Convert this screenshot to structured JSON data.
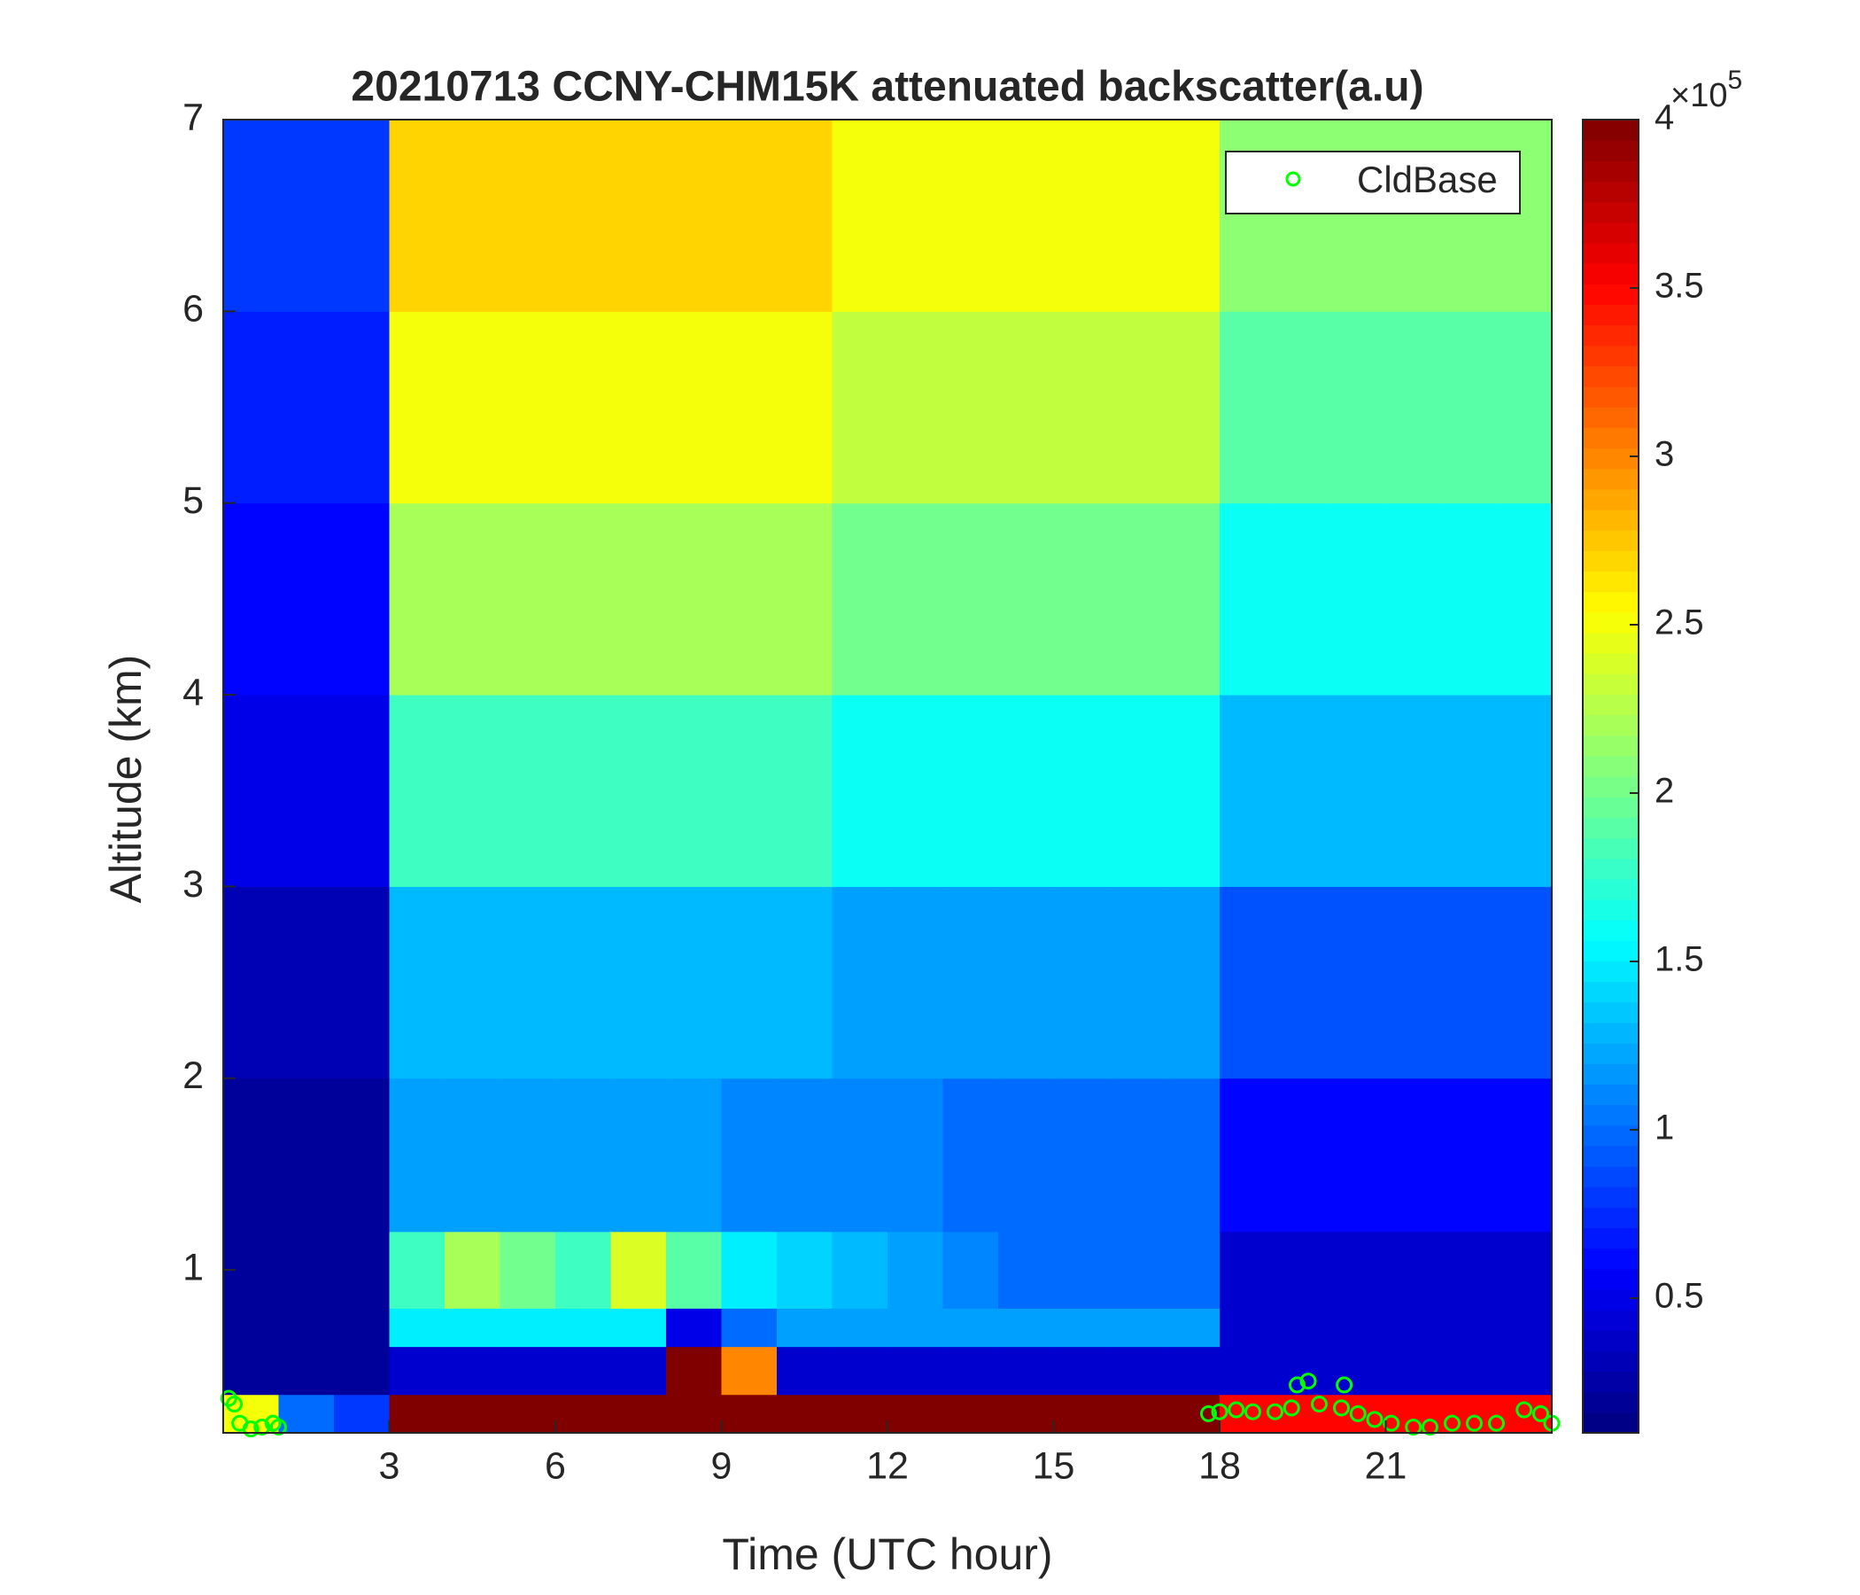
{
  "chart_data": {
    "type": "heatmap",
    "title": "20210713 CCNY-CHM15K attenuated backscatter(a.u)",
    "x_label": "Time (UTC hour)",
    "y_label": "Altitude (km)",
    "xlim": [
      0,
      24
    ],
    "ylim": [
      0.15,
      7
    ],
    "xticks": [
      3,
      6,
      9,
      12,
      15,
      18,
      21
    ],
    "yticks": [
      1,
      2,
      3,
      4,
      5,
      6,
      7
    ],
    "xbins": [
      0,
      1,
      2,
      3,
      4,
      5,
      6,
      7,
      8,
      9,
      10,
      11,
      12,
      13,
      14,
      15,
      16,
      17,
      18,
      19,
      20,
      21,
      22,
      23,
      24
    ],
    "ybins": [
      0.15,
      0.35,
      0.6,
      0.8,
      1.2,
      2,
      3,
      4,
      5,
      6,
      7
    ],
    "values": [
      [
        2.5,
        1,
        0.8,
        4,
        4,
        4,
        4,
        4,
        4,
        4,
        4,
        4,
        4,
        4,
        4,
        4,
        4,
        4,
        3.5,
        3.5,
        3.5,
        3.5,
        3.5,
        3.5
      ],
      [
        0.2,
        0.2,
        0.2,
        0.4,
        0.4,
        0.4,
        0.4,
        0.4,
        4,
        3,
        0.4,
        0.4,
        0.4,
        0.4,
        0.4,
        0.4,
        0.4,
        0.4,
        0.4,
        0.4,
        0.4,
        0.4,
        0.4,
        0.4
      ],
      [
        0.2,
        0.2,
        0.2,
        1.5,
        1.5,
        1.5,
        1.5,
        1.5,
        0.5,
        1,
        1.2,
        1.2,
        1.2,
        1.2,
        1.2,
        1.2,
        1.2,
        1.2,
        0.4,
        0.4,
        0.4,
        0.4,
        0.4,
        0.4
      ],
      [
        0.2,
        0.2,
        0.2,
        1.8,
        2.2,
        2,
        1.8,
        2.4,
        1.9,
        1.5,
        1.4,
        1.3,
        1.2,
        1.1,
        1,
        1,
        1,
        1,
        0.4,
        0.4,
        0.4,
        0.4,
        0.4,
        0.4
      ],
      [
        0.2,
        0.2,
        0.2,
        1.2,
        1.2,
        1.2,
        1.2,
        1.2,
        1.2,
        1.1,
        1.1,
        1.1,
        1.1,
        1,
        1,
        1,
        1,
        1,
        0.6,
        0.6,
        0.6,
        0.6,
        0.6,
        0.6
      ],
      [
        0.3,
        0.3,
        0.3,
        1.3,
        1.3,
        1.3,
        1.3,
        1.3,
        1.3,
        1.3,
        1.3,
        1.2,
        1.2,
        1.2,
        1.2,
        1.2,
        1.2,
        1.2,
        0.9,
        0.9,
        0.9,
        0.9,
        0.9,
        0.9
      ],
      [
        0.5,
        0.5,
        0.5,
        1.8,
        1.8,
        1.8,
        1.8,
        1.8,
        1.8,
        1.8,
        1.8,
        1.6,
        1.6,
        1.6,
        1.6,
        1.6,
        1.6,
        1.6,
        1.3,
        1.3,
        1.3,
        1.3,
        1.3,
        1.3
      ],
      [
        0.6,
        0.6,
        0.6,
        2.2,
        2.2,
        2.2,
        2.2,
        2.2,
        2.2,
        2.2,
        2.2,
        2,
        2,
        2,
        2,
        2,
        2,
        2,
        1.6,
        1.6,
        1.6,
        1.6,
        1.6,
        1.6
      ],
      [
        0.7,
        0.7,
        0.7,
        2.5,
        2.5,
        2.5,
        2.5,
        2.5,
        2.5,
        2.5,
        2.5,
        2.3,
        2.3,
        2.3,
        2.3,
        2.3,
        2.3,
        2.3,
        1.9,
        1.9,
        1.9,
        1.9,
        1.9,
        1.9
      ],
      [
        0.8,
        0.8,
        0.8,
        2.7,
        2.7,
        2.7,
        2.7,
        2.7,
        2.7,
        2.7,
        2.7,
        2.5,
        2.5,
        2.5,
        2.5,
        2.5,
        2.5,
        2.5,
        2.1,
        2.1,
        2.1,
        2.1,
        2.1,
        2.1
      ]
    ],
    "colormap": "jet",
    "clim": [
      0.1,
      4
    ],
    "colorbar_ticks": [
      0.5,
      1,
      1.5,
      2,
      2.5,
      3,
      3.5,
      4
    ],
    "colorbar_multiplier": "×10",
    "colorbar_exponent": 5,
    "legend": "northeast",
    "series": [
      {
        "name": "CldBase",
        "color": "#00ff00",
        "x": [
          0.1,
          0.2,
          0.3,
          0.5,
          0.7,
          0.9,
          1,
          17.8,
          18,
          18.3,
          18.6,
          19,
          19.3,
          19.4,
          19.6,
          19.8,
          20.25,
          20.2,
          20.5,
          20.8,
          21.1,
          21.5,
          21.8,
          22.2,
          22.6,
          23,
          23.5,
          23.8,
          24
        ],
        "values": [
          0.33,
          0.3,
          0.2,
          0.17,
          0.18,
          0.2,
          0.18,
          0.25,
          0.26,
          0.27,
          0.26,
          0.26,
          0.28,
          0.4,
          0.42,
          0.3,
          0.4,
          0.28,
          0.25,
          0.22,
          0.2,
          0.18,
          0.18,
          0.2,
          0.2,
          0.2,
          0.27,
          0.25,
          0.2
        ]
      }
    ]
  }
}
